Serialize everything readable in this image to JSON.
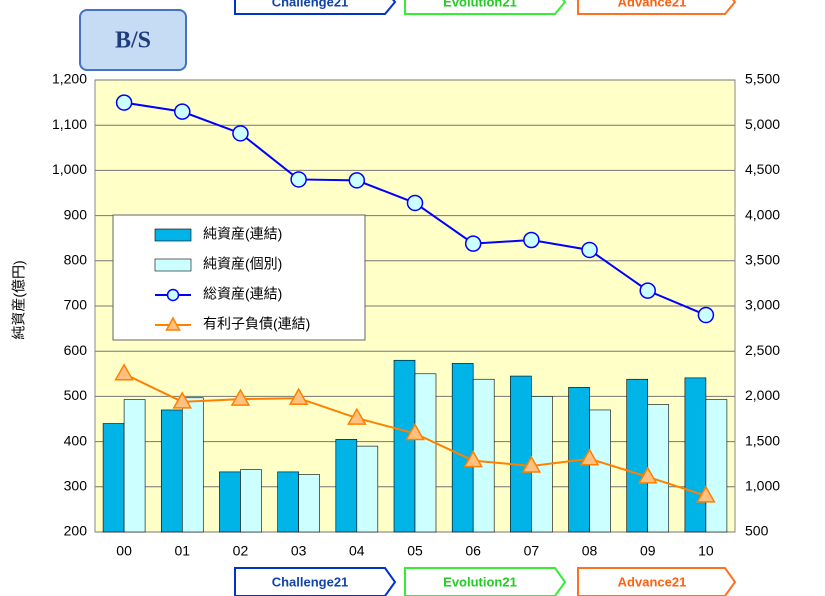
{
  "chart_data": {
    "type": "bar",
    "badge": "B/S",
    "ylabel": "純資産(億円)",
    "phases": [
      "Challenge21",
      "Evolution21",
      "Advance21"
    ],
    "categories": [
      "00",
      "01",
      "02",
      "03",
      "04",
      "05",
      "06",
      "07",
      "08",
      "09",
      "10"
    ],
    "ylim": [
      200,
      1200
    ],
    "yticks": [
      200,
      300,
      400,
      500,
      600,
      700,
      800,
      900,
      {
        "value": 1000,
        "label": "1,000"
      },
      {
        "value": 1100,
        "label": "1,100"
      },
      {
        "value": 1200,
        "label": "1,200"
      }
    ],
    "y2lim": [
      500,
      5500
    ],
    "y2ticks": [
      500,
      {
        "value": 1000,
        "label": "1,000"
      },
      {
        "value": 1500,
        "label": "1,500"
      },
      {
        "value": 2000,
        "label": "2,000"
      },
      {
        "value": 2500,
        "label": "2,500"
      },
      {
        "value": 3000,
        "label": "3,000"
      },
      {
        "value": 3500,
        "label": "3,500"
      },
      {
        "value": 4000,
        "label": "4,000"
      },
      {
        "value": 4500,
        "label": "4,500"
      },
      {
        "value": 5000,
        "label": "5,000"
      },
      {
        "value": 5500,
        "label": "5,500"
      }
    ],
    "grid": true,
    "series": [
      {
        "name": "純資産(連結)",
        "type": "bar",
        "color": "#00b4e8",
        "values": [
          440,
          470,
          333,
          333,
          405,
          580,
          573,
          545,
          520,
          538,
          541
        ]
      },
      {
        "name": "純資産(個別)",
        "type": "bar",
        "color": "#ccffff",
        "values": [
          493,
          497,
          338,
          327,
          390,
          550,
          538,
          500,
          470,
          482,
          493
        ]
      },
      {
        "name": "総資産(連結)",
        "type": "line",
        "axis": "y2",
        "color": "#0000ff",
        "values": [
          5250,
          5150,
          4910,
          4400,
          4390,
          4140,
          3690,
          3730,
          3620,
          3170,
          2900
        ]
      },
      {
        "name": "有利子負債(連結)",
        "type": "line",
        "axis": "y2",
        "color": "#ff8000",
        "values": [
          2250,
          1940,
          1970,
          1980,
          1760,
          1590,
          1290,
          1230,
          1310,
          1110,
          900
        ]
      }
    ]
  }
}
